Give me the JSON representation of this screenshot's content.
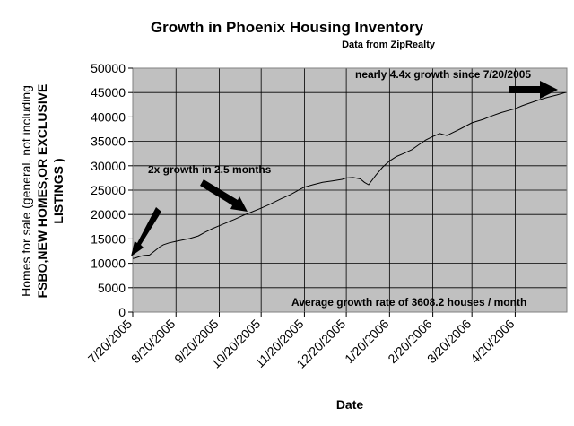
{
  "chart_data": {
    "type": "line",
    "title": "Growth in Phoenix Housing Inventory",
    "subtitle": "Data from ZipRealty",
    "xlabel": "Date",
    "ylabel": [
      "Homes for sale (general, not including",
      "FSBO,NEW HOMES,OR EXCLUSIVE",
      "LISTINGS )"
    ],
    "ylim": [
      0,
      50000
    ],
    "yticks": [
      0,
      5000,
      10000,
      15000,
      20000,
      25000,
      30000,
      35000,
      40000,
      45000,
      50000
    ],
    "xlim": [
      "2005-07-20",
      "2006-05-27"
    ],
    "xticks": [
      "7/20/2005",
      "8/20/2005",
      "9/20/2005",
      "10/20/2005",
      "11/20/2005",
      "12/20/2005",
      "1/20/2006",
      "2/20/2006",
      "3/20/2006",
      "4/20/2006"
    ],
    "xtick_dates": [
      "2005-07-20",
      "2005-08-20",
      "2005-09-20",
      "2005-10-20",
      "2005-11-20",
      "2005-12-20",
      "2006-01-20",
      "2006-02-20",
      "2006-03-20",
      "2006-04-20"
    ],
    "grid": true,
    "plot_background": "#c0c0c0",
    "line_color": "#000000",
    "series": [
      {
        "x": [
          "2005-07-20",
          "2005-07-22",
          "2005-07-25",
          "2005-07-28",
          "2005-08-01",
          "2005-08-05",
          "2005-08-08",
          "2005-08-11",
          "2005-08-15",
          "2005-08-20",
          "2005-08-25",
          "2005-08-30",
          "2005-09-05",
          "2005-09-10",
          "2005-09-15",
          "2005-09-20",
          "2005-09-25",
          "2005-10-01",
          "2005-10-07",
          "2005-10-13",
          "2005-10-20",
          "2005-10-27",
          "2005-11-03",
          "2005-11-10",
          "2005-11-17",
          "2005-11-20",
          "2005-11-26",
          "2005-12-03",
          "2005-12-10",
          "2005-12-17",
          "2005-12-20",
          "2005-12-25",
          "2005-12-30",
          "2006-01-02",
          "2006-01-05",
          "2006-01-10",
          "2006-01-15",
          "2006-01-20",
          "2006-01-25",
          "2006-01-30",
          "2006-02-05",
          "2006-02-10",
          "2006-02-15",
          "2006-02-20",
          "2006-02-25",
          "2006-03-02",
          "2006-03-07",
          "2006-03-12",
          "2006-03-20",
          "2006-03-28",
          "2006-04-04",
          "2006-04-10",
          "2006-04-15",
          "2006-04-20",
          "2006-04-25",
          "2006-05-01",
          "2006-05-07",
          "2006-05-13",
          "2006-05-20",
          "2006-05-26"
        ],
        "y": [
          11000,
          11100,
          11400,
          11600,
          11700,
          12600,
          13300,
          13800,
          14200,
          14500,
          14800,
          15100,
          15600,
          16400,
          17100,
          17700,
          18300,
          19000,
          19800,
          20500,
          21300,
          22200,
          23200,
          24100,
          25200,
          25600,
          26100,
          26600,
          26900,
          27200,
          27500,
          27600,
          27300,
          26600,
          26100,
          28000,
          29700,
          31000,
          31900,
          32500,
          33300,
          34300,
          35300,
          36000,
          36600,
          36200,
          36900,
          37600,
          38800,
          39500,
          40300,
          40900,
          41300,
          41700,
          42300,
          42900,
          43500,
          44000,
          44500,
          45000
        ]
      }
    ],
    "annotations": [
      "2x growth in 2.5 months",
      "nearly 4.4x growth since 7/20/2005",
      "Average growth rate of 3608.2 houses / month"
    ]
  }
}
